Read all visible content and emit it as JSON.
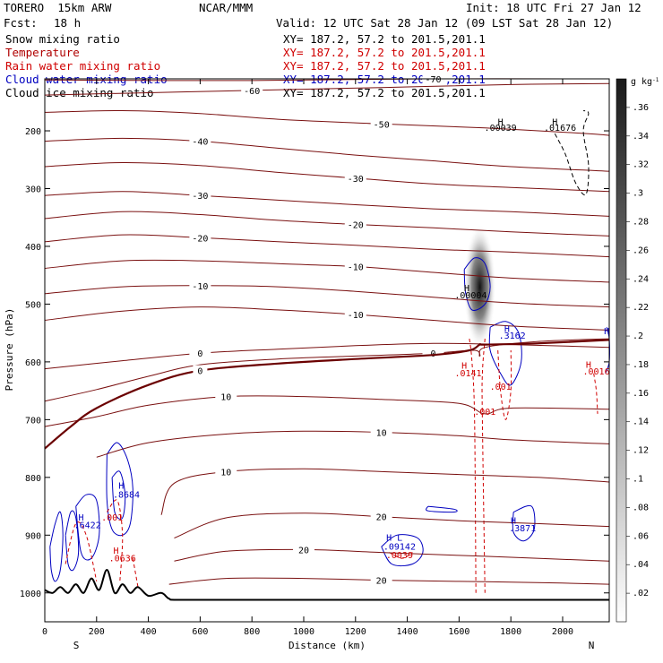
{
  "header": {
    "model": "TORERO  15km ARW",
    "center": "NCAR/MMM",
    "init": "Init: 18 UTC Fri 27 Jan 12",
    "fcst_label": "Fcst:",
    "fcst_value": "18 h",
    "valid": "Valid: 12 UTC Sat 28 Jan 12 (09 LST Sat 28 Jan 12)"
  },
  "legend": [
    {
      "name": "Snow mixing ratio",
      "xy": "XY= 187.2, 57.2 to 201.5,201.1",
      "color": "#000000"
    },
    {
      "name": "Temperature",
      "xy": "XY= 187.2, 57.2 to 201.5,201.1",
      "color": "#b00000"
    },
    {
      "name": "Rain water mixing ratio",
      "xy": "XY= 187.2, 57.2 to 201.5,201.1",
      "color": "#d00000"
    },
    {
      "name": "Cloud water mixing ratio",
      "xy": "XY= 187.2, 57.2 to 201.5,201.1",
      "color": "#0000c0"
    },
    {
      "name": "Cloud ice mixing ratio",
      "xy": "XY= 187.2, 57.2 to 201.5,201.1",
      "color": "#000000"
    }
  ],
  "chart_data": {
    "type": "cross-section",
    "xlabel": "Distance (km)",
    "ylabel": "Pressure (hPa)",
    "xlim": [
      0,
      2180
    ],
    "ylim": [
      1050,
      110
    ],
    "x_ticks": [
      0,
      200,
      400,
      600,
      800,
      1000,
      1200,
      1400,
      1600,
      1800,
      2000
    ],
    "y_ticks": [
      1000,
      900,
      800,
      700,
      600,
      500,
      400,
      300,
      200
    ],
    "direction_left": "S",
    "direction_right": "N",
    "colorbar": {
      "unit": "g kg",
      "unit_exp": "-1",
      "ticks": [
        ".02",
        ".04",
        ".06",
        ".08",
        ".1",
        ".12",
        ".14",
        ".16",
        ".18",
        ".2",
        ".22",
        ".24",
        ".26",
        ".28",
        ".3",
        ".32",
        ".34",
        ".36"
      ]
    },
    "temperature_isotherms": [
      {
        "value": -70,
        "label": "-70",
        "points": [
          [
            0,
            112
          ],
          [
            800,
            113
          ],
          [
            1500,
            110
          ],
          [
            2180,
            110
          ]
        ]
      },
      {
        "value": -60,
        "label": "-60",
        "points": [
          [
            0,
            138
          ],
          [
            400,
            134
          ],
          [
            800,
            130
          ],
          [
            1300,
            125
          ],
          [
            1800,
            120
          ],
          [
            2180,
            118
          ]
        ]
      },
      {
        "value": -50,
        "label": "-50",
        "points": [
          [
            0,
            168
          ],
          [
            300,
            165
          ],
          [
            600,
            170
          ],
          [
            900,
            180
          ],
          [
            1300,
            188
          ],
          [
            1700,
            195
          ],
          [
            2100,
            205
          ],
          [
            2180,
            208
          ]
        ]
      },
      {
        "value": -40,
        "label": "-40",
        "points": [
          [
            0,
            218
          ],
          [
            300,
            213
          ],
          [
            600,
            218
          ],
          [
            900,
            230
          ],
          [
            1200,
            242
          ],
          [
            1500,
            252
          ],
          [
            1800,
            262
          ],
          [
            2180,
            270
          ]
        ]
      },
      {
        "value": -30,
        "label": "-30",
        "points": [
          [
            0,
            262
          ],
          [
            300,
            255
          ],
          [
            600,
            260
          ],
          [
            900,
            272
          ],
          [
            1200,
            282
          ],
          [
            1500,
            292
          ],
          [
            1800,
            298
          ],
          [
            2180,
            305
          ]
        ]
      },
      {
        "value": -30,
        "label": "-30",
        "points": [
          [
            0,
            312
          ],
          [
            300,
            305
          ],
          [
            600,
            312
          ],
          [
            900,
            320
          ],
          [
            1200,
            328
          ],
          [
            1500,
            335
          ],
          [
            1800,
            340
          ],
          [
            2180,
            348
          ]
        ]
      },
      {
        "value": -20,
        "label": "-20",
        "points": [
          [
            0,
            352
          ],
          [
            300,
            340
          ],
          [
            600,
            345
          ],
          [
            900,
            355
          ],
          [
            1200,
            362
          ],
          [
            1500,
            368
          ],
          [
            1800,
            375
          ],
          [
            2180,
            382
          ]
        ]
      },
      {
        "value": -20,
        "label": "-20",
        "points": [
          [
            0,
            392
          ],
          [
            300,
            380
          ],
          [
            600,
            385
          ],
          [
            900,
            392
          ],
          [
            1200,
            398
          ],
          [
            1500,
            405
          ],
          [
            1800,
            410
          ],
          [
            2180,
            418
          ]
        ]
      },
      {
        "value": -10,
        "label": "-10",
        "points": [
          [
            0,
            438
          ],
          [
            300,
            425
          ],
          [
            600,
            425
          ],
          [
            900,
            430
          ],
          [
            1200,
            435
          ],
          [
            1500,
            445
          ],
          [
            1800,
            455
          ],
          [
            2180,
            462
          ]
        ]
      },
      {
        "value": -10,
        "label": "-10",
        "points": [
          [
            0,
            482
          ],
          [
            300,
            470
          ],
          [
            600,
            468
          ],
          [
            900,
            470
          ],
          [
            1200,
            478
          ],
          [
            1500,
            488
          ],
          [
            1800,
            498
          ],
          [
            2180,
            505
          ]
        ]
      },
      {
        "value": -10,
        "label": "-10",
        "points": [
          [
            0,
            528
          ],
          [
            300,
            512
          ],
          [
            600,
            505
          ],
          [
            900,
            510
          ],
          [
            1200,
            518
          ],
          [
            1500,
            528
          ],
          [
            1800,
            538
          ],
          [
            2180,
            545
          ]
        ]
      },
      {
        "value": 0,
        "label": "0",
        "points": [
          [
            0,
            612
          ],
          [
            300,
            598
          ],
          [
            600,
            585
          ],
          [
            900,
            578
          ],
          [
            1200,
            572
          ],
          [
            1500,
            568
          ],
          [
            1800,
            570
          ],
          [
            2180,
            575
          ]
        ]
      },
      {
        "value": 0,
        "label": "0",
        "points": [
          [
            0,
            668
          ],
          [
            200,
            648
          ],
          [
            400,
            625
          ],
          [
            600,
            605
          ],
          [
            900,
            595
          ],
          [
            1200,
            590
          ],
          [
            1500,
            585
          ],
          [
            1660,
            580
          ],
          [
            1680,
            590
          ],
          [
            1700,
            575
          ],
          [
            1900,
            565
          ],
          [
            2180,
            560
          ]
        ]
      },
      {
        "value": 10,
        "label": "10",
        "points": [
          [
            0,
            712
          ],
          [
            200,
            695
          ],
          [
            400,
            675
          ],
          [
            700,
            660
          ],
          [
            1000,
            660
          ],
          [
            1300,
            665
          ],
          [
            1600,
            672
          ],
          [
            1700,
            690
          ],
          [
            1800,
            680
          ],
          [
            2180,
            682
          ]
        ]
      },
      {
        "value": 10,
        "label": "10",
        "points": [
          [
            200,
            765
          ],
          [
            400,
            740
          ],
          [
            700,
            725
          ],
          [
            1000,
            720
          ],
          [
            1300,
            722
          ],
          [
            1600,
            728
          ],
          [
            1800,
            735
          ],
          [
            2180,
            742
          ]
        ]
      },
      {
        "value": 10,
        "label": "10",
        "points": [
          [
            450,
            865
          ],
          [
            500,
            810
          ],
          [
            700,
            790
          ],
          [
            1000,
            785
          ],
          [
            1300,
            790
          ],
          [
            1600,
            795
          ],
          [
            1900,
            800
          ],
          [
            2180,
            808
          ]
        ]
      },
      {
        "value": 20,
        "label": "20",
        "points": [
          [
            500,
            905
          ],
          [
            700,
            870
          ],
          [
            1000,
            862
          ],
          [
            1300,
            868
          ],
          [
            1600,
            875
          ],
          [
            1900,
            880
          ],
          [
            2180,
            885
          ]
        ]
      },
      {
        "value": 20,
        "label": "20",
        "points": [
          [
            500,
            945
          ],
          [
            700,
            928
          ],
          [
            1000,
            925
          ],
          [
            1300,
            930
          ],
          [
            1600,
            935
          ],
          [
            1900,
            940
          ],
          [
            2180,
            945
          ]
        ]
      },
      {
        "value": 20,
        "label": "20",
        "points": [
          [
            480,
            985
          ],
          [
            700,
            975
          ],
          [
            1000,
            975
          ],
          [
            1300,
            978
          ],
          [
            1600,
            980
          ],
          [
            1900,
            982
          ],
          [
            2180,
            985
          ]
        ]
      }
    ],
    "freezing_level": {
      "label": "0",
      "points": [
        [
          0,
          750
        ],
        [
          100,
          712
        ],
        [
          200,
          680
        ],
        [
          400,
          640
        ],
        [
          600,
          615
        ],
        [
          900,
          603
        ],
        [
          1200,
          595
        ],
        [
          1500,
          588
        ],
        [
          1640,
          580
        ],
        [
          1680,
          570
        ],
        [
          1700,
          570
        ],
        [
          1900,
          568
        ],
        [
          2180,
          562
        ]
      ]
    },
    "terrain": {
      "points": [
        [
          0,
          995
        ],
        [
          30,
          1000
        ],
        [
          60,
          990
        ],
        [
          90,
          1000
        ],
        [
          120,
          985
        ],
        [
          150,
          1000
        ],
        [
          180,
          975
        ],
        [
          210,
          995
        ],
        [
          240,
          960
        ],
        [
          270,
          1000
        ],
        [
          300,
          985
        ],
        [
          330,
          1000
        ],
        [
          360,
          990
        ],
        [
          400,
          1005
        ],
        [
          450,
          1000
        ],
        [
          480,
          1010
        ],
        [
          520,
          1012
        ],
        [
          800,
          1012
        ],
        [
          1200,
          1012
        ],
        [
          1600,
          1012
        ],
        [
          2000,
          1012
        ],
        [
          2180,
          1012
        ]
      ]
    },
    "annotations": [
      {
        "text": "H",
        "x": 1760,
        "y": 190,
        "color": "#000000"
      },
      {
        "text": ".00039",
        "x": 1760,
        "y": 200,
        "color": "#000000"
      },
      {
        "text": "H",
        "x": 1970,
        "y": 190,
        "color": "#000000"
      },
      {
        "text": ".01676",
        "x": 1990,
        "y": 200,
        "color": "#000000"
      },
      {
        "text": "H",
        "x": 1630,
        "y": 478,
        "color": "#000000"
      },
      {
        "text": ".00004",
        "x": 1645,
        "y": 490,
        "color": "#000000"
      },
      {
        "text": "H",
        "x": 1785,
        "y": 548,
        "color": "#0000c0"
      },
      {
        "text": ".3162",
        "x": 1805,
        "y": 560,
        "color": "#0000c0"
      },
      {
        "text": "H",
        "x": 1620,
        "y": 612,
        "color": "#d00000"
      },
      {
        "text": ".0141",
        "x": 1635,
        "y": 625,
        "color": "#d00000"
      },
      {
        "text": ".001",
        "x": 1760,
        "y": 648,
        "color": "#d00000"
      },
      {
        "text": ".001",
        "x": 1700,
        "y": 692,
        "color": "#d00000"
      },
      {
        "text": "H",
        "x": 2100,
        "y": 610,
        "color": "#d00000"
      },
      {
        "text": ".0016",
        "x": 2130,
        "y": 622,
        "color": "#d00000"
      },
      {
        "text": "H",
        "x": 2170,
        "y": 552,
        "color": "#0000c0"
      },
      {
        "text": "H",
        "x": 295,
        "y": 820,
        "color": "#0000c0"
      },
      {
        "text": ".8684",
        "x": 315,
        "y": 835,
        "color": "#0000c0"
      },
      {
        "text": "H",
        "x": 140,
        "y": 875,
        "color": "#0000c0"
      },
      {
        "text": ".6422",
        "x": 165,
        "y": 888,
        "color": "#0000c0"
      },
      {
        "text": ".001",
        "x": 260,
        "y": 875,
        "color": "#d00000"
      },
      {
        "text": "H",
        "x": 275,
        "y": 932,
        "color": "#d00000"
      },
      {
        "text": ".0636",
        "x": 300,
        "y": 945,
        "color": "#d00000"
      },
      {
        "text": "H L",
        "x": 1350,
        "y": 910,
        "color": "#0000c0"
      },
      {
        "text": ".09142",
        "x": 1370,
        "y": 925,
        "color": "#0000c0"
      },
      {
        "text": ".0039",
        "x": 1370,
        "y": 940,
        "color": "#d00000"
      },
      {
        "text": "H",
        "x": 1810,
        "y": 880,
        "color": "#0000c0"
      },
      {
        "text": ".3871",
        "x": 1845,
        "y": 893,
        "color": "#0000c0"
      }
    ]
  }
}
